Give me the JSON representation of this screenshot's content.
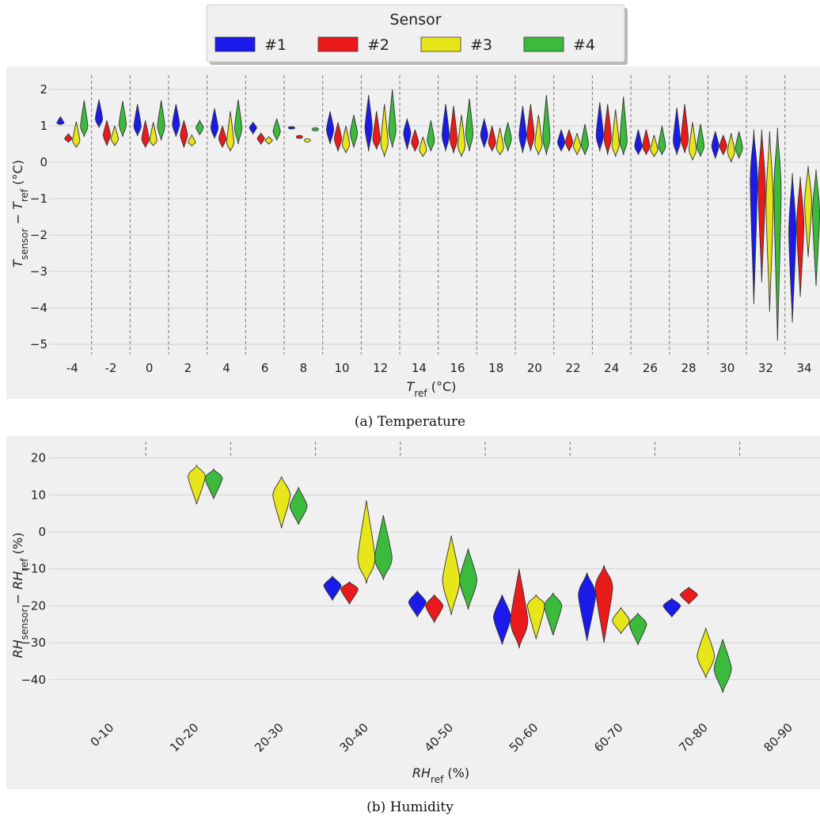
{
  "legend": {
    "title": "Sensor",
    "entries": [
      {
        "label": "#1",
        "color": "#1a1aeb"
      },
      {
        "label": "#2",
        "color": "#eb1a1a"
      },
      {
        "label": "#3",
        "color": "#e6e61a"
      },
      {
        "label": "#4",
        "color": "#3cba3c"
      }
    ]
  },
  "chart_data": [
    {
      "type": "violin",
      "caption": "(a) Temperature",
      "xlabel_main": "T",
      "xlabel_sub": "ref",
      "xlabel_unit": " (°C)",
      "ylabel_parts": [
        {
          "text": "T",
          "sub": false
        },
        {
          "text": "sensor",
          "sub": true
        },
        {
          "text": " − ",
          "sub": false
        },
        {
          "text": "T",
          "sub": false
        },
        {
          "text": "ref",
          "sub": true
        },
        {
          "text": " (°C)",
          "sub": false
        }
      ],
      "ylim": [
        -5.4,
        2.4
      ],
      "yticks": [
        2,
        1,
        0,
        -1,
        -2,
        -3,
        -4,
        -5
      ],
      "ytick_labels": [
        "2",
        "1",
        "0",
        "−1",
        "−2",
        "−3",
        "−4",
        "−5"
      ],
      "categories": [
        "-4",
        "-2",
        "0",
        "2",
        "4",
        "6",
        "8",
        "10",
        "12",
        "14",
        "16",
        "18",
        "20",
        "22",
        "24",
        "26",
        "28",
        "30",
        "32",
        "34"
      ],
      "grid": true,
      "series": [
        {
          "name": "#1",
          "violins": [
            [
              1.03,
              1.25,
              1.08
            ],
            [
              0.95,
              1.72,
              1.2
            ],
            [
              0.72,
              1.6,
              1.0
            ],
            [
              0.7,
              1.6,
              1.05
            ],
            [
              0.65,
              1.48,
              0.95
            ],
            [
              0.78,
              1.1,
              0.95
            ],
            [
              0.93,
              0.96,
              0.945
            ],
            [
              0.5,
              1.4,
              0.9
            ],
            [
              0.3,
              1.85,
              0.95
            ],
            [
              0.35,
              1.2,
              0.8
            ],
            [
              0.3,
              1.6,
              0.75
            ],
            [
              0.4,
              1.2,
              0.75
            ],
            [
              0.25,
              1.55,
              0.75
            ],
            [
              0.3,
              0.9,
              0.55
            ],
            [
              0.3,
              1.65,
              0.75
            ],
            [
              0.2,
              0.9,
              0.45
            ],
            [
              0.2,
              1.5,
              0.6
            ],
            [
              0.1,
              0.85,
              0.45
            ],
            [
              -3.9,
              0.9,
              -0.5
            ],
            [
              -4.4,
              -0.3,
              -1.9
            ]
          ]
        },
        {
          "name": "#2",
          "violins": [
            [
              0.55,
              0.78,
              0.65
            ],
            [
              0.45,
              1.15,
              0.75
            ],
            [
              0.4,
              1.15,
              0.65
            ],
            [
              0.4,
              1.15,
              0.75
            ],
            [
              0.4,
              1.0,
              0.65
            ],
            [
              0.5,
              0.8,
              0.65
            ],
            [
              0.67,
              0.72,
              0.695
            ],
            [
              0.3,
              1.1,
              0.65
            ],
            [
              0.35,
              1.4,
              0.65
            ],
            [
              0.3,
              0.9,
              0.55
            ],
            [
              0.25,
              1.55,
              0.65
            ],
            [
              0.3,
              1.0,
              0.55
            ],
            [
              0.3,
              1.6,
              0.75
            ],
            [
              0.3,
              0.9,
              0.55
            ],
            [
              0.2,
              1.6,
              0.7
            ],
            [
              0.2,
              0.9,
              0.45
            ],
            [
              0.25,
              1.6,
              0.65
            ],
            [
              0.2,
              0.75,
              0.45
            ],
            [
              -3.3,
              0.9,
              -0.7
            ],
            [
              -3.7,
              -0.4,
              -1.7
            ]
          ]
        },
        {
          "name": "#3",
          "violins": [
            [
              0.4,
              1.12,
              0.6
            ],
            [
              0.45,
              1.0,
              0.65
            ],
            [
              0.45,
              1.1,
              0.6
            ],
            [
              0.45,
              0.75,
              0.55
            ],
            [
              0.3,
              1.4,
              0.55
            ],
            [
              0.5,
              0.7,
              0.6
            ],
            [
              0.57,
              0.63,
              0.6
            ],
            [
              0.25,
              1.0,
              0.5
            ],
            [
              0.15,
              1.6,
              0.55
            ],
            [
              0.15,
              0.7,
              0.35
            ],
            [
              0.15,
              1.3,
              0.45
            ],
            [
              0.2,
              0.95,
              0.4
            ],
            [
              0.2,
              1.3,
              0.5
            ],
            [
              0.2,
              0.8,
              0.45
            ],
            [
              0.15,
              1.45,
              0.5
            ],
            [
              0.15,
              0.75,
              0.35
            ],
            [
              0.05,
              1.1,
              0.35
            ],
            [
              0.0,
              0.8,
              0.3
            ],
            [
              -4.1,
              0.85,
              -1.1
            ],
            [
              -2.6,
              -0.1,
              -1.1
            ]
          ]
        },
        {
          "name": "#4",
          "violins": [
            [
              0.7,
              1.7,
              1.0
            ],
            [
              0.7,
              1.68,
              1.05
            ],
            [
              0.6,
              1.7,
              1.0
            ],
            [
              0.75,
              1.15,
              0.95
            ],
            [
              0.5,
              1.72,
              0.95
            ],
            [
              0.6,
              1.2,
              0.85
            ],
            [
              0.88,
              0.93,
              0.905
            ],
            [
              0.4,
              1.3,
              0.8
            ],
            [
              0.4,
              2.0,
              0.9
            ],
            [
              0.3,
              1.15,
              0.6
            ],
            [
              0.3,
              1.75,
              0.8
            ],
            [
              0.3,
              1.1,
              0.65
            ],
            [
              0.2,
              1.85,
              0.7
            ],
            [
              0.2,
              1.05,
              0.5
            ],
            [
              0.2,
              1.8,
              0.6
            ],
            [
              0.2,
              1.0,
              0.45
            ],
            [
              0.15,
              1.05,
              0.45
            ],
            [
              0.1,
              0.85,
              0.4
            ],
            [
              -4.9,
              0.95,
              -0.8
            ],
            [
              -3.4,
              -0.2,
              -1.4
            ]
          ]
        }
      ]
    },
    {
      "type": "violin",
      "caption": "(b) Humidity",
      "xlabel_main": "RH",
      "xlabel_sub": "ref",
      "xlabel_unit": " (%)",
      "ylabel_parts": [
        {
          "text": "RH",
          "sub": false
        },
        {
          "text": "sensor",
          "sub": true
        },
        {
          "text": " − ",
          "sub": false
        },
        {
          "text": "RH",
          "sub": false
        },
        {
          "text": "ref",
          "sub": true
        },
        {
          "text": " (%)",
          "sub": false
        }
      ],
      "ylim": [
        -48,
        23
      ],
      "yticks": [
        20,
        10,
        0,
        -10,
        -20,
        -30,
        -40
      ],
      "ytick_labels": [
        "20",
        "10",
        "0",
        "−10",
        "−20",
        "−30",
        "−40"
      ],
      "categories": [
        "0-10",
        "10-20",
        "20-30",
        "30-40",
        "40-50",
        "50-60",
        "60-70",
        "70-80",
        "80-90"
      ],
      "grid": true,
      "series": [
        {
          "name": "#1",
          "violins": [
            null,
            null,
            null,
            [
              -18.5,
              -12.0,
              -14.5
            ],
            [
              -23.0,
              -16.0,
              -19.0
            ],
            [
              -30.5,
              -17.0,
              -23.0
            ],
            [
              -29.5,
              -11.0,
              -17.0
            ],
            [
              -23.0,
              -18.0,
              -20.0
            ],
            null
          ]
        },
        {
          "name": "#2",
          "violins": [
            null,
            null,
            null,
            [
              -19.5,
              -13.5,
              -15.5
            ],
            [
              -24.5,
              -17.0,
              -20.0
            ],
            [
              -31.5,
              -10.0,
              -24.0
            ],
            [
              -30.0,
              -9.0,
              -15.0
            ],
            [
              -19.5,
              -15.0,
              -17.0
            ],
            null
          ]
        },
        {
          "name": "#3",
          "violins": [
            null,
            [
              7.5,
              18.0,
              15.0
            ],
            [
              1.0,
              15.0,
              10.0
            ],
            [
              -14.0,
              8.5,
              -7.0
            ],
            [
              -22.5,
              -1.0,
              -13.0
            ],
            [
              -29.0,
              -17.0,
              -20.0
            ],
            [
              -27.5,
              -20.5,
              -24.0
            ],
            [
              -39.5,
              -26.0,
              -33.5
            ],
            null
          ]
        },
        {
          "name": "#4",
          "violins": [
            null,
            [
              9.0,
              17.0,
              14.5
            ],
            [
              2.0,
              12.0,
              7.0
            ],
            [
              -13.0,
              4.5,
              -7.0
            ],
            [
              -21.0,
              -4.5,
              -13.0
            ],
            [
              -28.0,
              -16.5,
              -20.0
            ],
            [
              -30.5,
              -22.0,
              -25.0
            ],
            [
              -43.5,
              -29.0,
              -37.0
            ],
            null
          ]
        }
      ]
    }
  ]
}
